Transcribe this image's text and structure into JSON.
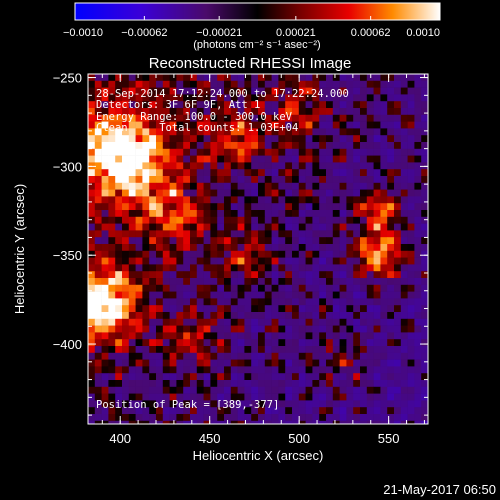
{
  "colorbar": {
    "tick_labels": [
      "−0.0010",
      "−0.00062",
      "−0.00021",
      "0.00021",
      "0.00062",
      "0.0010"
    ],
    "tick_values": [
      -0.001,
      -0.00062,
      -0.00021,
      0.00021,
      0.00062,
      0.001
    ],
    "range": [
      -0.001,
      0.001
    ],
    "unit_label": "(photons cm⁻² s⁻¹ asec⁻²)"
  },
  "chart_data": {
    "type": "heatmap",
    "title": "Reconstructed RHESSI Image",
    "xlabel": "Heliocentric X (arcsec)",
    "ylabel": "Heliocentric Y (arcsec)",
    "xlim": [
      382,
      572
    ],
    "ylim": [
      -445,
      -248
    ],
    "x_ticks": [
      400,
      450,
      500,
      550
    ],
    "x_tick_labels": [
      "400",
      "450",
      "500",
      "550"
    ],
    "y_ticks": [
      -250,
      -300,
      -350,
      -400
    ],
    "y_tick_labels": [
      "−250",
      "−300",
      "−350",
      "−400"
    ],
    "colormap": "hot-blue diverging",
    "peak_position": [
      389,
      -377
    ],
    "annotations": {
      "time": "28-Sep-2014 17:12:24.000 to 17:22:24.000",
      "detectors": "Detectors: 3F 6F 9F, Att 1",
      "energy": "Energy Range: 100.0 - 300.0 keV",
      "clean": "Clean     Total counts: 1.03E+04",
      "peak": "Position of Peak = [389,-377]"
    }
  },
  "footer": {
    "timestamp": "21-May-2017 06:50"
  },
  "colors": {
    "background": "#000000",
    "foreground": "#ffffff"
  }
}
